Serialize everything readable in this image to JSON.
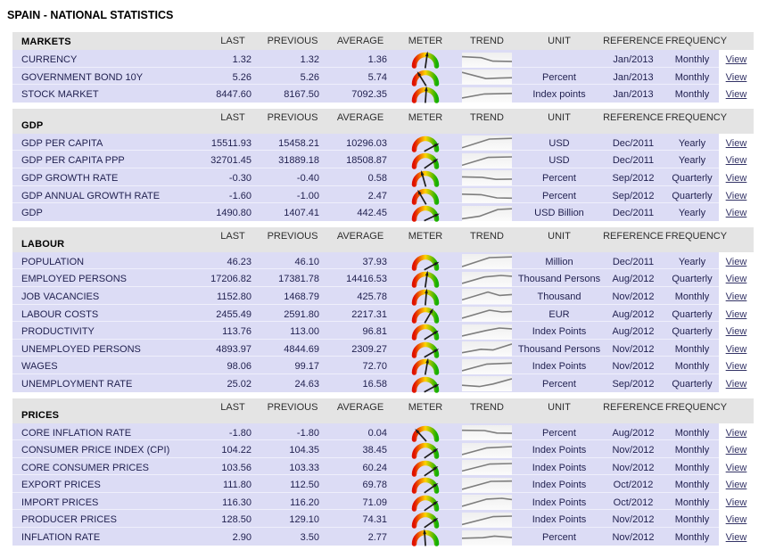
{
  "page": {
    "title": "SPAIN - NATIONAL STATISTICS"
  },
  "columns": {
    "last": "LAST",
    "previous": "PREVIOUS",
    "average": "AVERAGE",
    "meter": "METER",
    "trend": "TREND",
    "unit": "UNIT",
    "reference": "REFERENCE",
    "frequency": "FREQUENCY"
  },
  "view_label": "View",
  "colors": {
    "header_bg": "#e4e4e4",
    "row_bg": "#dcdcf5",
    "link_color": "#333366",
    "meter_red": "#e01000",
    "meter_yellow": "#ffd400",
    "meter_green": "#17b000",
    "trend_line": "#7d7d7d",
    "needle": "#1b1b1b"
  },
  "sections": [
    {
      "name": "MARKETS",
      "rows": [
        {
          "indicator": "CURRENCY",
          "last": "1.32",
          "previous": "1.32",
          "average": "1.36",
          "meter_angle": 8,
          "trend": [
            [
              0,
              22
            ],
            [
              38,
              30
            ],
            [
              62,
              58
            ],
            [
              100,
              60
            ]
          ],
          "unit": "",
          "reference": "Jan/2013",
          "frequency": "Monthly"
        },
        {
          "indicator": "GOVERNMENT BOND 10Y",
          "last": "5.26",
          "previous": "5.26",
          "average": "5.74",
          "meter_angle": -32,
          "trend": [
            [
              0,
              12
            ],
            [
              48,
              62
            ],
            [
              75,
              58
            ],
            [
              100,
              55
            ]
          ],
          "unit": "Percent",
          "reference": "Jan/2013",
          "frequency": "Monthly"
        },
        {
          "indicator": "STOCK MARKET",
          "last": "8447.60",
          "previous": "8167.50",
          "average": "7092.35",
          "meter_angle": 4,
          "trend": [
            [
              0,
              75
            ],
            [
              45,
              42
            ],
            [
              100,
              38
            ]
          ],
          "unit": "Index points",
          "reference": "Jan/2013",
          "frequency": "Monthly"
        }
      ]
    },
    {
      "name": "GDP",
      "rows": [
        {
          "indicator": "GDP PER CAPITA",
          "last": "15511.93",
          "previous": "15458.21",
          "average": "10296.03",
          "meter_angle": 62,
          "trend": [
            [
              0,
              88
            ],
            [
              55,
              18
            ],
            [
              100,
              12
            ]
          ],
          "unit": "USD",
          "reference": "Dec/2011",
          "frequency": "Yearly"
        },
        {
          "indicator": "GDP PER CAPITA PPP",
          "last": "32701.45",
          "previous": "31889.18",
          "average": "18508.87",
          "meter_angle": 55,
          "trend": [
            [
              0,
              85
            ],
            [
              52,
              22
            ],
            [
              100,
              18
            ]
          ],
          "unit": "USD",
          "reference": "Dec/2011",
          "frequency": "Yearly"
        },
        {
          "indicator": "GDP GROWTH RATE",
          "last": "-0.30",
          "previous": "-0.40",
          "average": "0.58",
          "meter_angle": -16,
          "trend": [
            [
              0,
              42
            ],
            [
              40,
              46
            ],
            [
              68,
              62
            ],
            [
              100,
              60
            ]
          ],
          "unit": "Percent",
          "reference": "Sep/2012",
          "frequency": "Quarterly"
        },
        {
          "indicator": "GDP ANNUAL GROWTH RATE",
          "last": "-1.60",
          "previous": "-1.00",
          "average": "2.47",
          "meter_angle": -30,
          "trend": [
            [
              0,
              38
            ],
            [
              38,
              42
            ],
            [
              70,
              68
            ],
            [
              100,
              70
            ]
          ],
          "unit": "Percent",
          "reference": "Sep/2012",
          "frequency": "Quarterly"
        },
        {
          "indicator": "GDP",
          "last": "1490.80",
          "previous": "1407.41",
          "average": "442.45",
          "meter_angle": 65,
          "trend": [
            [
              0,
              92
            ],
            [
              35,
              72
            ],
            [
              72,
              18
            ],
            [
              100,
              12
            ]
          ],
          "unit": "USD Billion",
          "reference": "Dec/2011",
          "frequency": "Yearly"
        }
      ]
    },
    {
      "name": "LABOUR",
      "rows": [
        {
          "indicator": "POPULATION",
          "last": "46.23",
          "previous": "46.10",
          "average": "37.93",
          "meter_angle": 62,
          "trend": [
            [
              0,
              90
            ],
            [
              55,
              18
            ],
            [
              100,
              12
            ]
          ],
          "unit": "Million",
          "reference": "Dec/2011",
          "frequency": "Yearly"
        },
        {
          "indicator": "EMPLOYED PERSONS",
          "last": "17206.82",
          "previous": "17381.78",
          "average": "14416.53",
          "meter_angle": 8,
          "trend": [
            [
              0,
              82
            ],
            [
              45,
              30
            ],
            [
              78,
              18
            ],
            [
              100,
              24
            ]
          ],
          "unit": "Thousand Persons",
          "reference": "Aug/2012",
          "frequency": "Quarterly"
        },
        {
          "indicator": "JOB VACANCIES",
          "last": "1152.80",
          "previous": "1468.79",
          "average": "425.78",
          "meter_angle": 5,
          "trend": [
            [
              0,
              78
            ],
            [
              52,
              15
            ],
            [
              75,
              42
            ],
            [
              100,
              35
            ]
          ],
          "unit": "Thousand",
          "reference": "Nov/2012",
          "frequency": "Monthly"
        },
        {
          "indicator": "LABOUR COSTS",
          "last": "2455.49",
          "previous": "2591.80",
          "average": "2217.31",
          "meter_angle": 30,
          "trend": [
            [
              0,
              82
            ],
            [
              55,
              18
            ],
            [
              80,
              32
            ],
            [
              100,
              28
            ]
          ],
          "unit": "EUR",
          "reference": "Aug/2012",
          "frequency": "Quarterly"
        },
        {
          "indicator": "PRODUCTIVITY",
          "last": "113.76",
          "previous": "113.00",
          "average": "96.81",
          "meter_angle": 58,
          "trend": [
            [
              0,
              82
            ],
            [
              48,
              38
            ],
            [
              75,
              18
            ],
            [
              100,
              24
            ]
          ],
          "unit": "Index Points",
          "reference": "Aug/2012",
          "frequency": "Quarterly"
        },
        {
          "indicator": "UNEMPLOYED PERSONS",
          "last": "4893.97",
          "previous": "4844.69",
          "average": "2309.27",
          "meter_angle": 60,
          "trend": [
            [
              0,
              80
            ],
            [
              38,
              52
            ],
            [
              62,
              58
            ],
            [
              100,
              10
            ]
          ],
          "unit": "Thousand Persons",
          "reference": "Nov/2012",
          "frequency": "Monthly"
        },
        {
          "indicator": "WAGES",
          "last": "98.06",
          "previous": "99.17",
          "average": "72.70",
          "meter_angle": 10,
          "trend": [
            [
              0,
              82
            ],
            [
              50,
              28
            ],
            [
              100,
              20
            ]
          ],
          "unit": "Index Points",
          "reference": "Nov/2012",
          "frequency": "Monthly"
        },
        {
          "indicator": "UNEMPLOYMENT RATE",
          "last": "25.02",
          "previous": "24.63",
          "average": "16.58",
          "meter_angle": 62,
          "trend": [
            [
              0,
              62
            ],
            [
              35,
              72
            ],
            [
              62,
              52
            ],
            [
              100,
              10
            ]
          ],
          "unit": "Percent",
          "reference": "Sep/2012",
          "frequency": "Quarterly"
        }
      ]
    },
    {
      "name": "PRICES",
      "rows": [
        {
          "indicator": "CORE INFLATION RATE",
          "last": "-1.80",
          "previous": "-1.80",
          "average": "0.04",
          "meter_angle": -42,
          "trend": [
            [
              0,
              30
            ],
            [
              45,
              32
            ],
            [
              70,
              52
            ],
            [
              100,
              54
            ]
          ],
          "unit": "Percent",
          "reference": "Aug/2012",
          "frequency": "Monthly"
        },
        {
          "indicator": "CONSUMER PRICE INDEX (CPI)",
          "last": "104.22",
          "previous": "104.35",
          "average": "38.45",
          "meter_angle": 55,
          "trend": [
            [
              0,
              82
            ],
            [
              50,
              28
            ],
            [
              100,
              18
            ]
          ],
          "unit": "Index Points",
          "reference": "Nov/2012",
          "frequency": "Monthly"
        },
        {
          "indicator": "CORE CONSUMER PRICES",
          "last": "103.56",
          "previous": "103.33",
          "average": "60.24",
          "meter_angle": 55,
          "trend": [
            [
              0,
              78
            ],
            [
              55,
              22
            ],
            [
              100,
              18
            ]
          ],
          "unit": "Index Points",
          "reference": "Nov/2012",
          "frequency": "Monthly"
        },
        {
          "indicator": "EXPORT PRICES",
          "last": "111.80",
          "previous": "112.50",
          "average": "69.78",
          "meter_angle": 55,
          "trend": [
            [
              0,
              82
            ],
            [
              58,
              18
            ],
            [
              100,
              16
            ]
          ],
          "unit": "Index Points",
          "reference": "Oct/2012",
          "frequency": "Monthly"
        },
        {
          "indicator": "IMPORT PRICES",
          "last": "116.30",
          "previous": "116.20",
          "average": "71.09",
          "meter_angle": 55,
          "trend": [
            [
              0,
              82
            ],
            [
              50,
              24
            ],
            [
              80,
              18
            ],
            [
              100,
              28
            ]
          ],
          "unit": "Index Points",
          "reference": "Oct/2012",
          "frequency": "Monthly"
        },
        {
          "indicator": "PRODUCER PRICES",
          "last": "128.50",
          "previous": "129.10",
          "average": "74.31",
          "meter_angle": 55,
          "trend": [
            [
              0,
              86
            ],
            [
              62,
              22
            ],
            [
              100,
              18
            ]
          ],
          "unit": "Index Points",
          "reference": "Nov/2012",
          "frequency": "Monthly"
        },
        {
          "indicator": "INFLATION RATE",
          "last": "2.90",
          "previous": "3.50",
          "average": "2.77",
          "meter_angle": -4,
          "trend": [
            [
              0,
              52
            ],
            [
              42,
              48
            ],
            [
              65,
              35
            ],
            [
              100,
              46
            ]
          ],
          "unit": "Percent",
          "reference": "Nov/2012",
          "frequency": "Monthly"
        }
      ]
    }
  ]
}
